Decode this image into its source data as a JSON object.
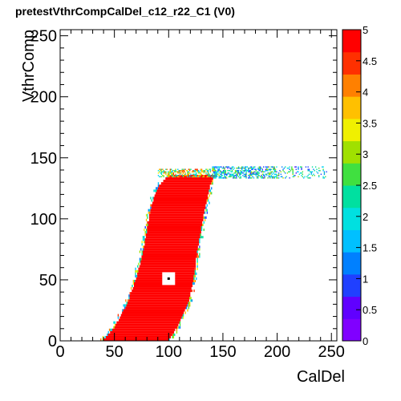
{
  "chart_data": {
    "type": "heatmap",
    "title": "pretestVthrCompCalDel_c12_r22_C1 (V0)",
    "xlabel": "CalDel",
    "ylabel": "VthrComp",
    "xlim": [
      0,
      255
    ],
    "ylim": [
      0,
      255
    ],
    "zlim": [
      0,
      5
    ],
    "x_ticks": [
      0,
      50,
      100,
      150,
      200,
      250
    ],
    "y_ticks": [
      0,
      50,
      100,
      150,
      200,
      250
    ],
    "z_ticks": [
      "0",
      "0.5",
      "1",
      "1.5",
      "2",
      "2.5",
      "3",
      "3.5",
      "4",
      "4.5",
      "5"
    ],
    "grid": false,
    "colorbar": "right",
    "palette": [
      "#8000ff",
      "#6000ff",
      "#2040ff",
      "#0080ff",
      "#00c0ff",
      "#00e0e0",
      "#00e0a0",
      "#40e040",
      "#a0e000",
      "#f0f000",
      "#ffc000",
      "#ff8000",
      "#ff3000",
      "#ff0000"
    ],
    "band_edges": [
      {
        "y": 0,
        "x_left": 40,
        "x_right": 100
      },
      {
        "y": 10,
        "x_left": 50,
        "x_right": 108
      },
      {
        "y": 30,
        "x_left": 62,
        "x_right": 118
      },
      {
        "y": 50,
        "x_left": 70,
        "x_right": 123
      },
      {
        "y": 70,
        "x_left": 76,
        "x_right": 126
      },
      {
        "y": 90,
        "x_left": 80,
        "x_right": 130
      },
      {
        "y": 110,
        "x_left": 84,
        "x_right": 134
      },
      {
        "y": 125,
        "x_left": 90,
        "x_right": 138
      },
      {
        "y": 135,
        "x_left": 100,
        "x_right": 142
      }
    ],
    "plateau": {
      "y_range": [
        133,
        142
      ],
      "x_range": [
        140,
        245
      ],
      "value": 2
    },
    "fill_value": 5,
    "marker": {
      "x": 100,
      "y": 51
    }
  }
}
